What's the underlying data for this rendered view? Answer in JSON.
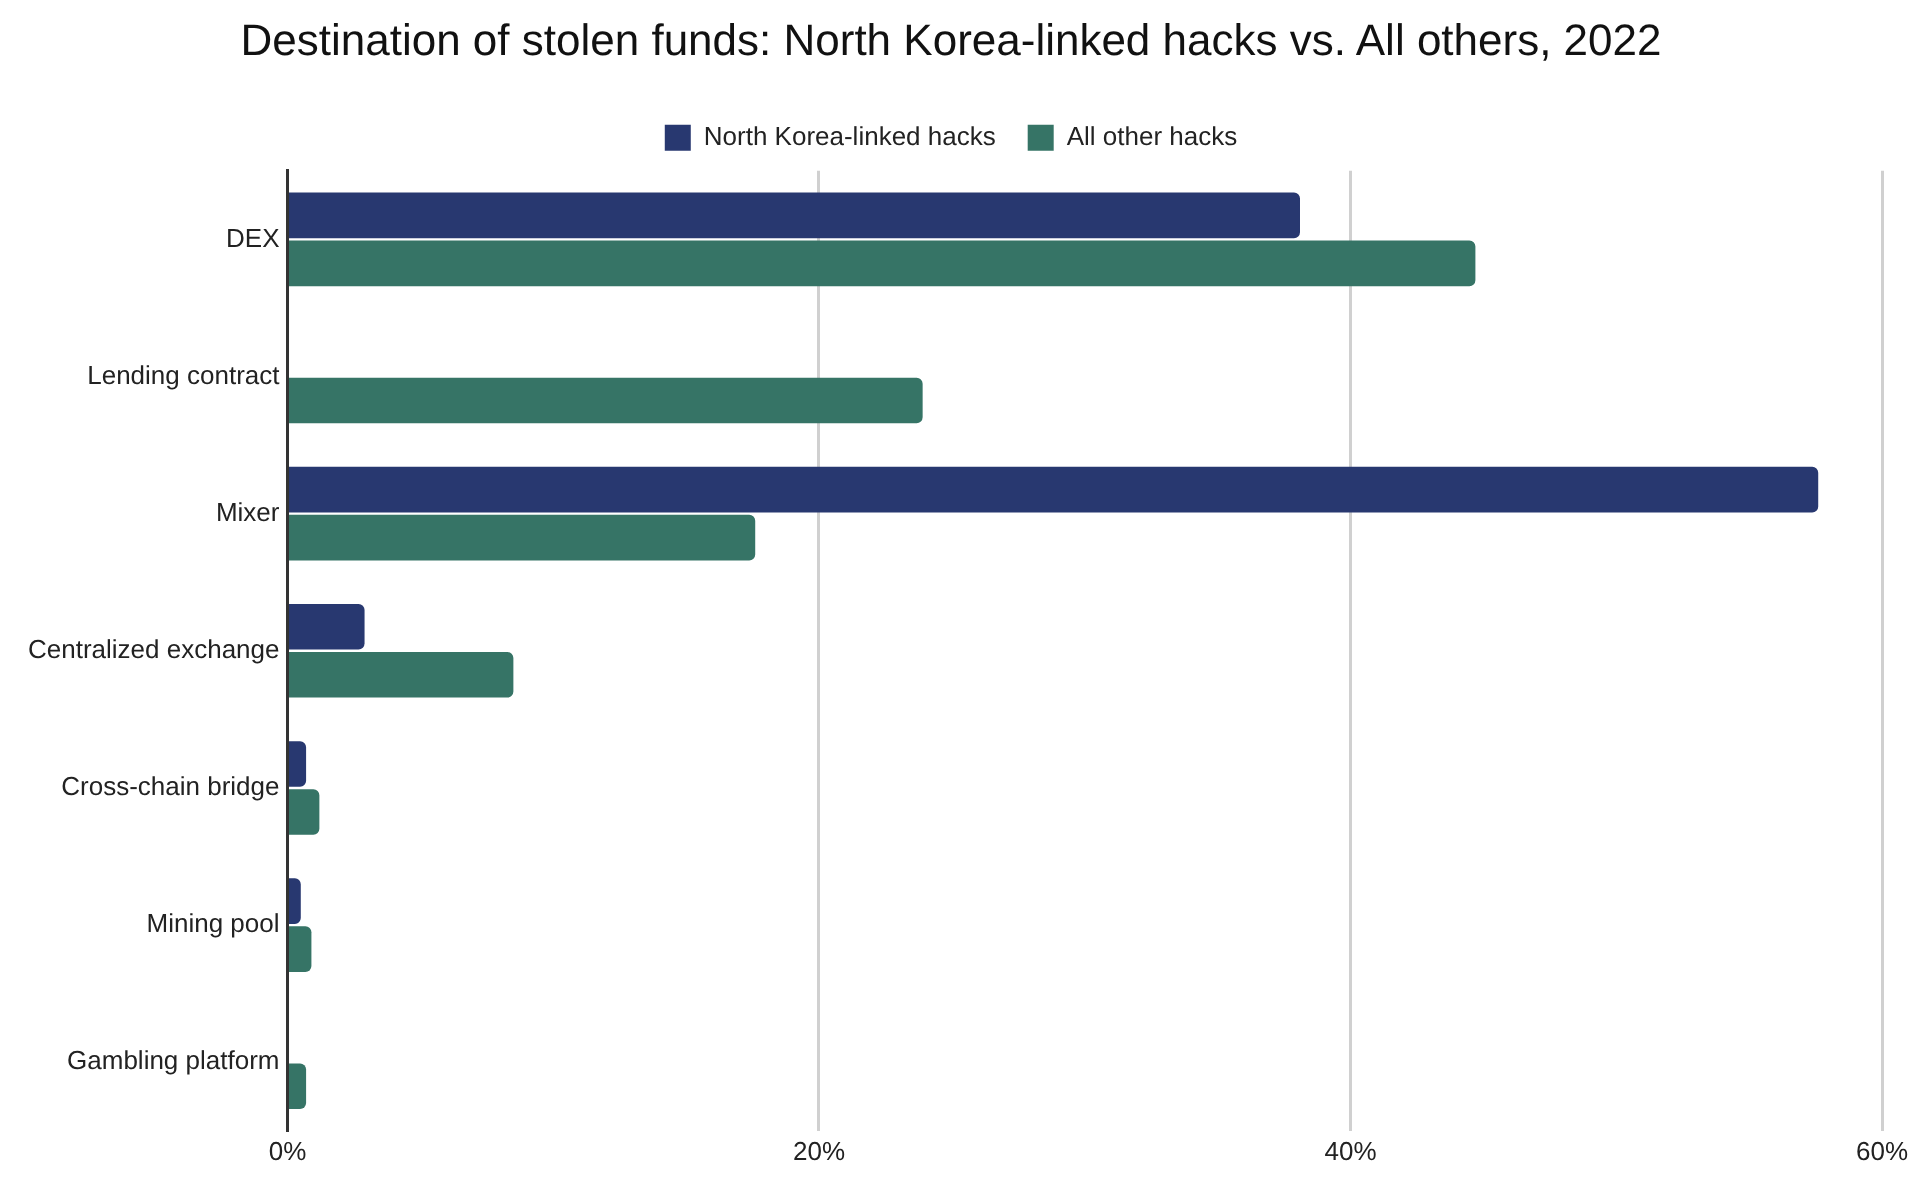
{
  "chart_data": {
    "type": "bar",
    "orientation": "horizontal",
    "title": "Destination of stolen funds: North Korea-linked hacks vs. All others, 2022",
    "categories": [
      "DEX",
      "Lending contract",
      "Mixer",
      "Centralized exchange",
      "Cross-chain bridge",
      "Mining pool",
      "Gambling platform"
    ],
    "series": [
      {
        "name": "North Korea-linked hacks",
        "color": "#283870",
        "values": [
          38.1,
          0,
          57.6,
          2.9,
          0.7,
          0.5,
          0
        ]
      },
      {
        "name": "All other hacks",
        "color": "#367466",
        "values": [
          44.7,
          23.9,
          17.6,
          8.5,
          1.2,
          0.9,
          0.7
        ]
      }
    ],
    "xlim": [
      0,
      60
    ],
    "xticks": [
      {
        "value": 0,
        "label": "0%"
      },
      {
        "value": 20,
        "label": "20%"
      },
      {
        "value": 40,
        "label": "40%"
      },
      {
        "value": 60,
        "label": "60%"
      }
    ],
    "grid": "x",
    "legend": "top"
  }
}
